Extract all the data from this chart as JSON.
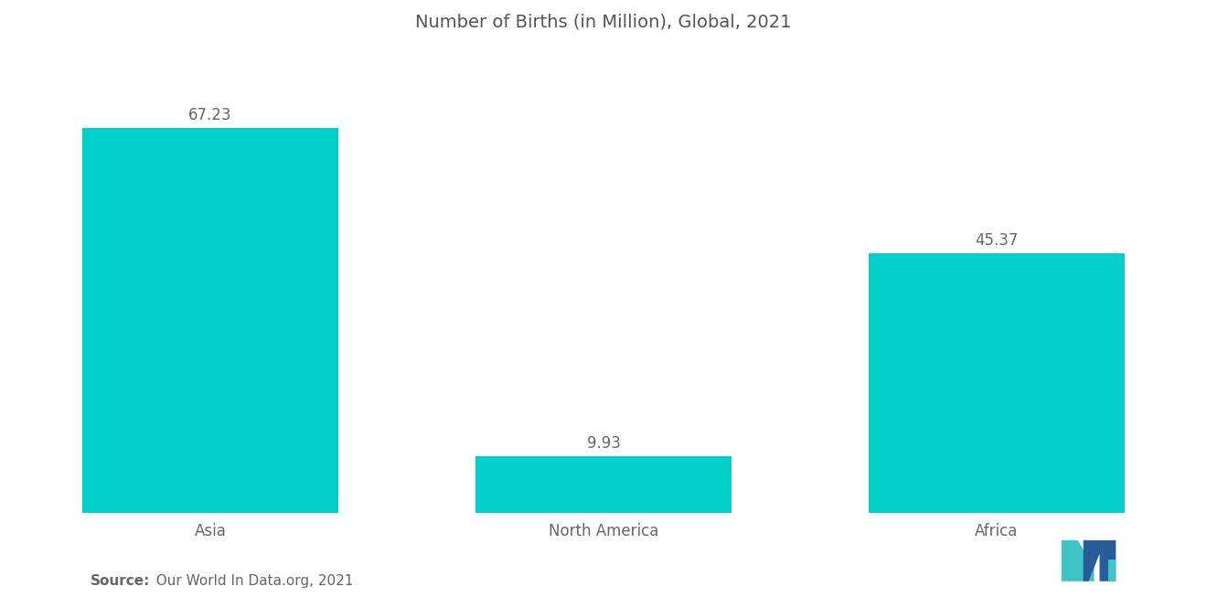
{
  "title": "Number of Births (in Million), Global, 2021",
  "categories": [
    "Asia",
    "North America",
    "Africa"
  ],
  "values": [
    67.23,
    9.93,
    45.37
  ],
  "bar_color": "#00CEC9",
  "bar_positions": [
    0,
    1,
    2
  ],
  "bar_width": 0.65,
  "value_labels": [
    "67.23",
    "9.93",
    "45.37"
  ],
  "source_bold": "Source:",
  "source_rest": "  Our World In Data.org, 2021",
  "title_fontsize": 14,
  "label_fontsize": 12,
  "value_fontsize": 12,
  "source_fontsize": 11,
  "background_color": "#ffffff",
  "text_color": "#666666",
  "ylim": [
    0,
    80
  ],
  "title_color": "#555555",
  "xlim": [
    -0.5,
    2.5
  ],
  "logo_teal": "#3EC6C6",
  "logo_blue": "#2A5C9A"
}
